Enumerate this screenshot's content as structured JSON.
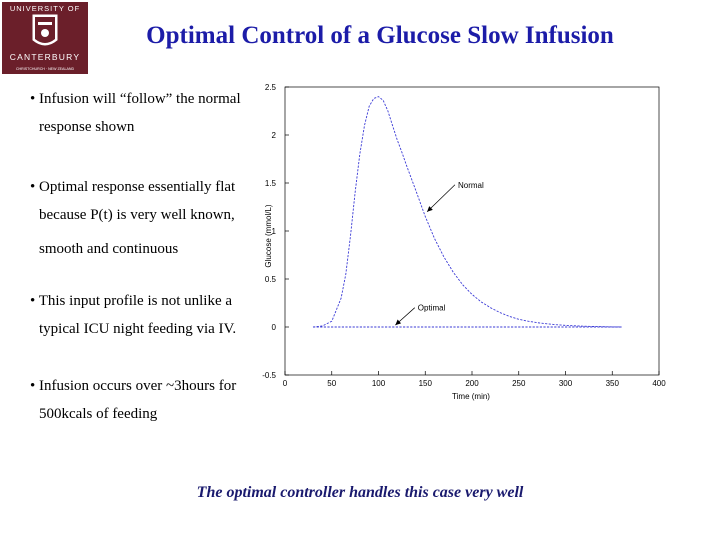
{
  "slide": {
    "title": "Optimal Control of a Glucose Slow Infusion",
    "footer": "The optimal controller handles this case very well"
  },
  "logo": {
    "line1": "UNIVERSITY OF",
    "line2": "CANTERBURY",
    "tagline": "CHRISTCHURCH · NEW ZEALAND",
    "color": "#6b1f2a"
  },
  "bullets": [
    {
      "lines": [
        "• Infusion will “follow” the normal",
        "response shown"
      ]
    },
    {
      "lines": [
        "• Optimal response essentially flat",
        "because P(t) is very well known,",
        "smooth and continuous"
      ]
    },
    {
      "lines": [
        "• This input profile is not unlike a",
        "typical ICU night feeding via IV."
      ]
    },
    {
      "lines": [
        "• Infusion occurs over ~3hours for",
        "500kcals of feeding"
      ]
    }
  ],
  "chart_data": {
    "type": "line",
    "xlabel": "Time (min)",
    "ylabel": "Glucose (mmol/L)",
    "xlim": [
      0,
      400
    ],
    "ylim": [
      -0.5,
      2.5
    ],
    "xticks": [
      0,
      50,
      100,
      150,
      200,
      250,
      300,
      350,
      400
    ],
    "yticks": [
      -0.5,
      0,
      0.5,
      1,
      1.5,
      2,
      2.5
    ],
    "grid": false,
    "series": [
      {
        "name": "Normal",
        "color": "#3b3bd6",
        "x": [
          30,
          40,
          50,
          60,
          65,
          70,
          75,
          80,
          85,
          90,
          95,
          100,
          105,
          110,
          115,
          120,
          125,
          130,
          140,
          150,
          160,
          170,
          180,
          190,
          200,
          210,
          220,
          230,
          240,
          250,
          260,
          270,
          280,
          290,
          300,
          310,
          320,
          330,
          340,
          350,
          360
        ],
        "y": [
          0,
          0.01,
          0.06,
          0.3,
          0.55,
          0.95,
          1.4,
          1.8,
          2.1,
          2.3,
          2.38,
          2.4,
          2.36,
          2.25,
          2.1,
          1.95,
          1.82,
          1.68,
          1.42,
          1.15,
          0.92,
          0.73,
          0.57,
          0.44,
          0.34,
          0.26,
          0.2,
          0.15,
          0.11,
          0.08,
          0.06,
          0.045,
          0.033,
          0.024,
          0.017,
          0.012,
          0.008,
          0.005,
          0.003,
          0.001,
          0
        ]
      },
      {
        "name": "Optimal",
        "color": "#3b3bd6",
        "x": [
          30,
          360
        ],
        "y": [
          0,
          0
        ]
      }
    ],
    "annotations": [
      {
        "text": "Normal",
        "x": 185,
        "y": 1.45,
        "arrow_to": [
          152,
          1.2
        ]
      },
      {
        "text": "Optimal",
        "x": 142,
        "y": 0.17,
        "arrow_to": [
          118,
          0.02
        ]
      }
    ]
  }
}
